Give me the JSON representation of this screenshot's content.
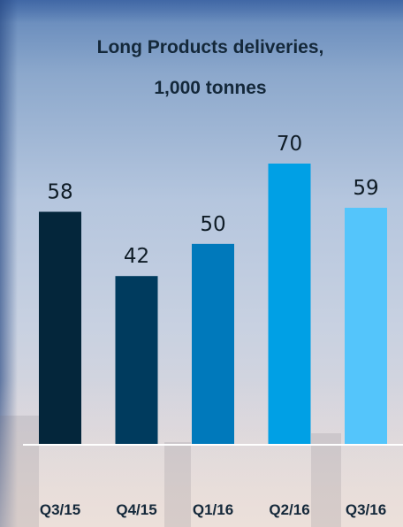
{
  "chart_data": {
    "type": "bar",
    "title_lines": [
      "Long Products deliveries,",
      "1,000 tonnes"
    ],
    "categories": [
      "Q3/15",
      "Q4/15",
      "Q1/16",
      "Q2/16",
      "Q3/16"
    ],
    "values": [
      58,
      42,
      50,
      70,
      59
    ],
    "data_labels": [
      "58",
      "42",
      "50",
      "70",
      "59"
    ],
    "colors": [
      "#04263b",
      "#003b5e",
      "#0079bb",
      "#00a0e5",
      "#54c5fb"
    ],
    "xlabel": "",
    "ylabel": "",
    "ylim": [
      0,
      70
    ],
    "grid": false,
    "legend": "none"
  }
}
